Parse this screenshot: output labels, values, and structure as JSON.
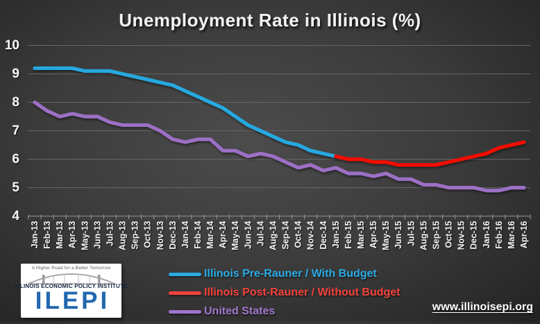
{
  "title": "Unemployment Rate in Illinois (%)",
  "footer": {
    "url": "www.illinoisepi.org"
  },
  "logo": {
    "tagline": "A Higher Road for a Better Tomorrow",
    "org": "ILLINOIS ECONOMIC POLICY INSTITUTE",
    "acronym": "ILEPI"
  },
  "legend": [
    {
      "label": "Illinois Pre-Rauner / With Budget",
      "color": "#2aaae2"
    },
    {
      "label": "Illinois Post-Rauner / Without Budget",
      "color": "#f4423b"
    },
    {
      "label": "United States",
      "color": "#9e77cc"
    }
  ],
  "chart_data": {
    "type": "line",
    "title": "Unemployment Rate in Illinois (%)",
    "xlabel": "",
    "ylabel": "",
    "ylim": [
      4,
      10
    ],
    "yticks": [
      10,
      9,
      8,
      7,
      6,
      5,
      4
    ],
    "grid": true,
    "legend_position": "bottom",
    "x": [
      "Jan-13",
      "Feb-13",
      "Mar-13",
      "Apr-13",
      "May-13",
      "Jun-13",
      "Jul-13",
      "Aug-13",
      "Sep-13",
      "Oct-13",
      "Nov-13",
      "Dec-13",
      "Jan-14",
      "Feb-14",
      "Mar-14",
      "Apr-14",
      "May-14",
      "Jun-14",
      "Jul-14",
      "Aug-14",
      "Sep-14",
      "Oct-14",
      "Nov-14",
      "Dec-14",
      "Jan-15",
      "Feb-15",
      "Mar-15",
      "Apr-15",
      "May-15",
      "Jun-15",
      "Jul-15",
      "Aug-15",
      "Sep-15",
      "Oct-15",
      "Nov-15",
      "Dec-15",
      "Jan-16",
      "Feb-16",
      "Mar-16",
      "Apr-16"
    ],
    "series": [
      {
        "name": "Illinois Pre-Rauner / With Budget",
        "color": "#25a9e0",
        "start_index": 0,
        "values": [
          9.2,
          9.2,
          9.2,
          9.2,
          9.1,
          9.1,
          9.1,
          9.0,
          8.9,
          8.8,
          8.7,
          8.6,
          8.4,
          8.2,
          8.0,
          7.8,
          7.5,
          7.2,
          7.0,
          6.8,
          6.6,
          6.5,
          6.3,
          6.2,
          6.1
        ]
      },
      {
        "name": "Illinois Post-Rauner / Without Budget",
        "color": "#f20d05",
        "start_index": 24,
        "values": [
          6.1,
          6.0,
          6.0,
          5.9,
          5.9,
          5.8,
          5.8,
          5.8,
          5.8,
          5.9,
          6.0,
          6.1,
          6.2,
          6.4,
          6.5,
          6.6
        ]
      },
      {
        "name": "United States",
        "color": "#9c6fc5",
        "start_index": 0,
        "values": [
          8.0,
          7.7,
          7.5,
          7.6,
          7.5,
          7.5,
          7.3,
          7.2,
          7.2,
          7.2,
          7.0,
          6.7,
          6.6,
          6.7,
          6.7,
          6.3,
          6.3,
          6.1,
          6.2,
          6.1,
          5.9,
          5.7,
          5.8,
          5.6,
          5.7,
          5.5,
          5.5,
          5.4,
          5.5,
          5.3,
          5.3,
          5.1,
          5.1,
          5.0,
          5.0,
          5.0,
          4.9,
          4.9,
          5.0,
          5.0
        ]
      }
    ]
  }
}
